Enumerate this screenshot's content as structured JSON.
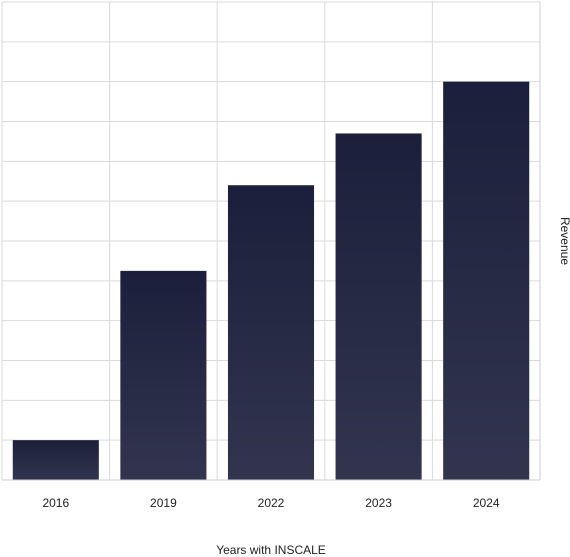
{
  "chart_data": {
    "type": "bar",
    "categories": [
      "2016",
      "2019",
      "2022",
      "2023",
      "2024"
    ],
    "values": [
      1,
      5.25,
      7.4,
      8.7,
      10
    ],
    "xlabel": "Years with INSCALE",
    "ylabel": "Revenue",
    "ylim": [
      0,
      12
    ],
    "grid": true,
    "legend": "none",
    "y_axis_position": "right",
    "y_tick_labels_shown": false,
    "colors": {
      "bar_top": "#1b1f3b",
      "bar_bottom": "#33354f",
      "grid": "#d9d9d9",
      "axis": "#cccccc",
      "background": "#ffffff"
    }
  }
}
